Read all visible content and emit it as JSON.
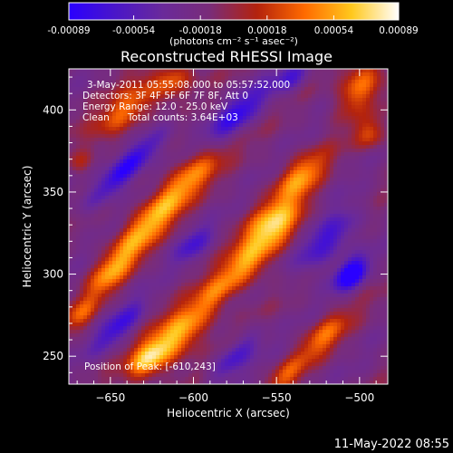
{
  "colorbar": {
    "ticks": [
      "-0.00089",
      "-0.00054",
      "-0.00018",
      "0.00018",
      "0.00054",
      "0.00089"
    ],
    "tick_values": [
      -0.00089,
      -0.00054,
      -0.00018,
      0.00018,
      0.00054,
      0.00089
    ],
    "range": [
      -0.00089,
      0.00089
    ],
    "units_label": "(photons cm⁻² s⁻¹ asec⁻²)",
    "colors": [
      "#2a00ff",
      "#4a16c8",
      "#6a2a9a",
      "#7a2c78",
      "#b4230d",
      "#ff6a00",
      "#ffc81c",
      "#ffffff"
    ]
  },
  "title": "Reconstructed RHESSI Image",
  "annotations": [
    "3-May-2011 05:55:08.000 to 05:57:52.000",
    "Detectors: 3F 4F 5F 6F 7F 8F, Att 0",
    "Energy Range: 12.0 - 25.0 keV",
    "Clean      Total counts: 3.64E+03"
  ],
  "peak_label": "Position of Peak: [-610,243]",
  "footer_date": "11-May-2022 08:55",
  "chart_data": {
    "type": "heatmap",
    "title": "Reconstructed RHESSI Image",
    "xlabel": "Heliocentric X (arcsec)",
    "ylabel": "Heliocentric Y (arcsec)",
    "xlim": [
      -675,
      -483
    ],
    "ylim": [
      233,
      425
    ],
    "x_ticks": [
      -650,
      -600,
      -550,
      -500
    ],
    "y_ticks": [
      250,
      300,
      350,
      400
    ],
    "x_tick_labels": [
      "−650",
      "−600",
      "−550",
      "−500"
    ],
    "y_tick_labels": [
      "250",
      "300",
      "350",
      "400"
    ],
    "value_range": [
      -0.00089,
      0.00089
    ],
    "peak_position": [
      -610,
      243
    ],
    "blobs": [
      {
        "x": -552,
        "y": 328,
        "sx": 16,
        "sy": 9,
        "angle": 45,
        "amp": 0.00089
      },
      {
        "x": -535,
        "y": 360,
        "sx": 13,
        "sy": 7,
        "angle": 45,
        "amp": 0.00058
      },
      {
        "x": -568,
        "y": 305,
        "sx": 11,
        "sy": 7,
        "angle": 45,
        "amp": 0.00045
      },
      {
        "x": -628,
        "y": 330,
        "sx": 22,
        "sy": 7,
        "angle": 48,
        "amp": 0.0007
      },
      {
        "x": -600,
        "y": 362,
        "sx": 20,
        "sy": 7,
        "angle": 48,
        "amp": 0.00055
      },
      {
        "x": -650,
        "y": 300,
        "sx": 14,
        "sy": 6,
        "angle": 48,
        "amp": 0.0005
      },
      {
        "x": -610,
        "y": 262,
        "sx": 18,
        "sy": 8,
        "angle": 45,
        "amp": 0.0008
      },
      {
        "x": -585,
        "y": 290,
        "sx": 14,
        "sy": 6,
        "angle": 45,
        "amp": 0.0005
      },
      {
        "x": -628,
        "y": 248,
        "sx": 10,
        "sy": 6,
        "angle": 45,
        "amp": 0.0006
      },
      {
        "x": -640,
        "y": 400,
        "sx": 18,
        "sy": 7,
        "angle": 45,
        "amp": 0.0006
      },
      {
        "x": -612,
        "y": 418,
        "sx": 10,
        "sy": 6,
        "angle": 45,
        "amp": 0.0005
      },
      {
        "x": -500,
        "y": 415,
        "sx": 14,
        "sy": 7,
        "angle": 60,
        "amp": 0.00065
      },
      {
        "x": -493,
        "y": 385,
        "sx": 7,
        "sy": 6,
        "angle": 60,
        "amp": 0.0004
      },
      {
        "x": -522,
        "y": 262,
        "sx": 14,
        "sy": 6,
        "angle": 45,
        "amp": 0.0005
      },
      {
        "x": -545,
        "y": 238,
        "sx": 10,
        "sy": 5,
        "angle": 45,
        "amp": 0.0004
      },
      {
        "x": -668,
        "y": 368,
        "sx": 6,
        "sy": 5,
        "angle": 45,
        "amp": 0.0003
      },
      {
        "x": -668,
        "y": 275,
        "sx": 8,
        "sy": 5,
        "angle": 45,
        "amp": 0.0004
      },
      {
        "x": -640,
        "y": 365,
        "sx": 22,
        "sy": 5,
        "angle": 45,
        "amp": -0.0008
      },
      {
        "x": -575,
        "y": 395,
        "sx": 18,
        "sy": 6,
        "angle": 45,
        "amp": -0.0006
      },
      {
        "x": -520,
        "y": 320,
        "sx": 18,
        "sy": 7,
        "angle": 45,
        "amp": -0.0006
      },
      {
        "x": -505,
        "y": 300,
        "sx": 8,
        "sy": 5,
        "angle": 45,
        "amp": -0.00089
      },
      {
        "x": -645,
        "y": 268,
        "sx": 14,
        "sy": 5,
        "angle": 45,
        "amp": -0.0005
      },
      {
        "x": -575,
        "y": 250,
        "sx": 14,
        "sy": 5,
        "angle": 45,
        "amp": -0.0005
      },
      {
        "x": -540,
        "y": 420,
        "sx": 10,
        "sy": 5,
        "angle": 45,
        "amp": -0.00045
      },
      {
        "x": -600,
        "y": 318,
        "sx": 10,
        "sy": 5,
        "angle": 45,
        "amp": -0.0004
      }
    ]
  }
}
